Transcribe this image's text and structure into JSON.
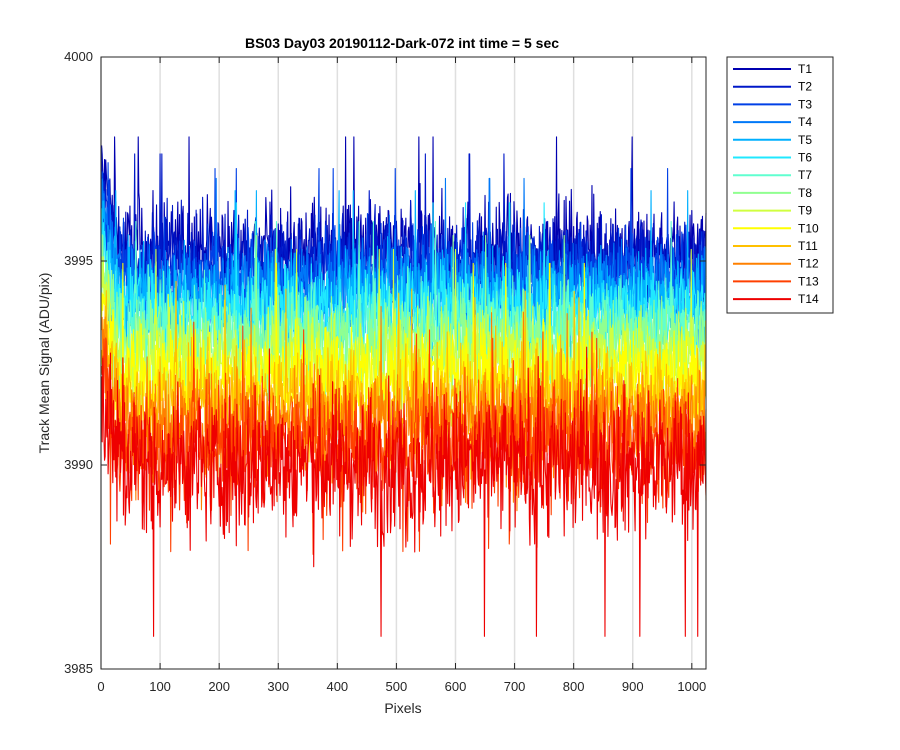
{
  "chart_data": {
    "type": "line",
    "title": "BS03 Day03 20190112-Dark-072 int time = 5 sec",
    "xlabel": "Pixels",
    "ylabel": "Track Mean Signal (ADU/pix)",
    "xlim": [
      0,
      1024
    ],
    "ylim": [
      3985,
      4000
    ],
    "xticks": [
      0,
      100,
      200,
      300,
      400,
      500,
      600,
      700,
      800,
      900,
      1000
    ],
    "yticks": [
      3985,
      3990,
      3995,
      4000
    ],
    "x_grid": true,
    "y_grid": false,
    "legend_position": "outside-right",
    "series": [
      {
        "name": "T1",
        "color": "#0000b0",
        "approx_mean": 3995.3,
        "approx_min": 3993.8,
        "approx_max": 3998.5
      },
      {
        "name": "T2",
        "color": "#0018c8",
        "approx_mean": 3995.0,
        "approx_min": 3993.5,
        "approx_max": 3998.0
      },
      {
        "name": "T3",
        "color": "#0040e6",
        "approx_mean": 3994.7,
        "approx_min": 3993.2,
        "approx_max": 3997.6
      },
      {
        "name": "T4",
        "color": "#0078f8",
        "approx_mean": 3994.4,
        "approx_min": 3992.8,
        "approx_max": 3997.3
      },
      {
        "name": "T5",
        "color": "#00b0ff",
        "approx_mean": 3994.1,
        "approx_min": 3992.5,
        "approx_max": 3997.0
      },
      {
        "name": "T6",
        "color": "#20e8ff",
        "approx_mean": 3993.8,
        "approx_min": 3992.1,
        "approx_max": 3996.6
      },
      {
        "name": "T7",
        "color": "#60ffd0",
        "approx_mean": 3993.4,
        "approx_min": 3991.8,
        "approx_max": 3996.2
      },
      {
        "name": "T8",
        "color": "#90ff90",
        "approx_mean": 3993.0,
        "approx_min": 3991.3,
        "approx_max": 3995.8
      },
      {
        "name": "T9",
        "color": "#d0ff40",
        "approx_mean": 3992.6,
        "approx_min": 3990.8,
        "approx_max": 3995.4
      },
      {
        "name": "T10",
        "color": "#ffff00",
        "approx_mean": 3992.2,
        "approx_min": 3990.3,
        "approx_max": 3995.0
      },
      {
        "name": "T11",
        "color": "#ffc000",
        "approx_mean": 3991.6,
        "approx_min": 3989.5,
        "approx_max": 3994.5
      },
      {
        "name": "T12",
        "color": "#ff8000",
        "approx_mean": 3991.0,
        "approx_min": 3988.8,
        "approx_max": 3994.0
      },
      {
        "name": "T13",
        "color": "#ff4000",
        "approx_mean": 3990.5,
        "approx_min": 3987.8,
        "approx_max": 3993.5
      },
      {
        "name": "T14",
        "color": "#ee0000",
        "approx_mean": 3990.0,
        "approx_min": 3985.8,
        "approx_max": 3993.0
      }
    ]
  }
}
